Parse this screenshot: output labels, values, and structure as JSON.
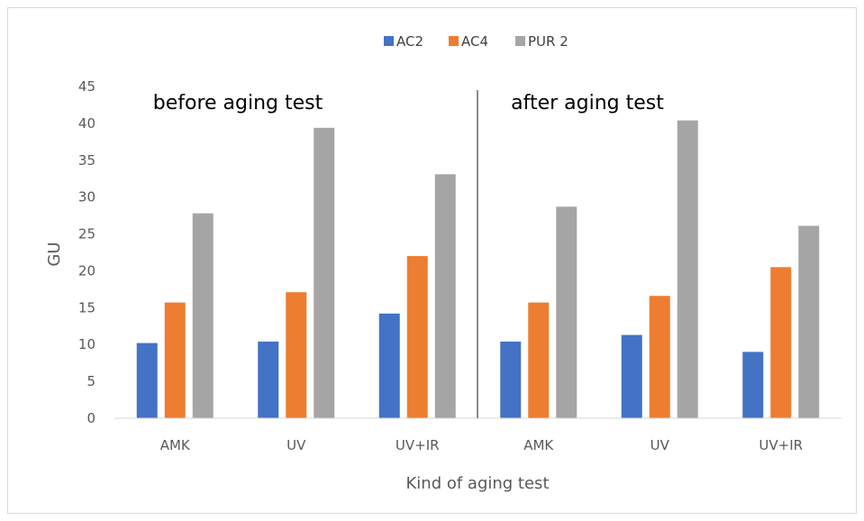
{
  "chart_data": {
    "type": "bar",
    "title": "",
    "xlabel": "Kind of aging test",
    "ylabel": "GU",
    "ylim": [
      0,
      45
    ],
    "yticks": [
      0,
      5,
      10,
      15,
      20,
      25,
      30,
      35,
      40,
      45
    ],
    "grid": false,
    "legend_position": "top",
    "categories": [
      "AMK",
      "UV",
      "UV+IR",
      "AMK",
      "UV",
      "UV+IR"
    ],
    "annotations": [
      "before aging test",
      "after aging test"
    ],
    "series": [
      {
        "name": "AC2",
        "color": "#4472c4",
        "values": [
          10.2,
          10.4,
          14.2,
          10.4,
          11.3,
          9.0
        ]
      },
      {
        "name": "AC4",
        "color": "#ed7d31",
        "values": [
          15.7,
          17.1,
          22.0,
          15.7,
          16.6,
          20.5
        ]
      },
      {
        "name": "PUR 2",
        "color": "#a5a5a5",
        "values": [
          27.8,
          39.4,
          33.1,
          28.7,
          40.4,
          26.1
        ]
      }
    ]
  }
}
